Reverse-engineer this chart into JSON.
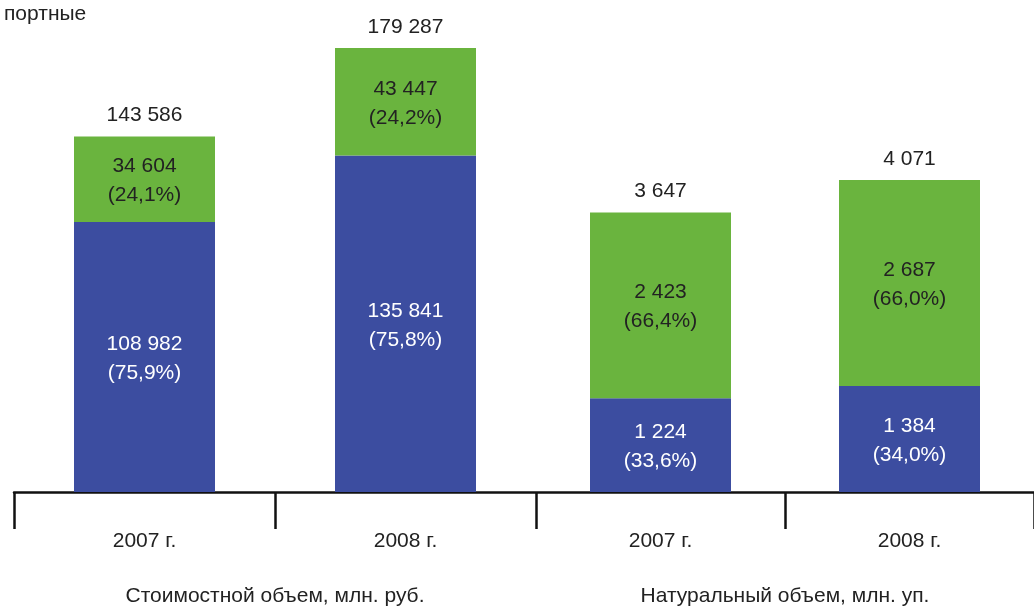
{
  "chart_data": [
    {
      "type": "bar",
      "stacked": true,
      "categories": [
        "2007 г.",
        "2008 г."
      ],
      "xlabel": "Стоимостной объем, млн. руб.",
      "annotations": [
        "портные"
      ],
      "tick_labels": "x",
      "series": [
        {
          "color": "#3c4da0",
          "values": [
            108982,
            135841
          ],
          "value_labels": [
            "108 982\n(75,9%)",
            "135 841\n(75,8%)"
          ]
        },
        {
          "color": "#6ab43e",
          "values": [
            34604,
            43447
          ],
          "value_labels": [
            "34 604\n(24,1%)",
            "43 447\n(24,2%)"
          ]
        }
      ],
      "totals": [
        "143 586",
        "179 287"
      ]
    },
    {
      "type": "bar",
      "stacked": true,
      "categories": [
        "2007 г.",
        "2008 г."
      ],
      "xlabel": "Натуральный объем, млн. уп.",
      "tick_labels": "x",
      "series": [
        {
          "color": "#3c4da0",
          "values": [
            1224,
            1384
          ],
          "value_labels": [
            "1 224\n(33,6%)",
            "1 384\n(34,0%)"
          ]
        },
        {
          "color": "#6ab43e",
          "values": [
            2423,
            2687
          ],
          "value_labels": [
            "2 423\n(66,4%)",
            "2 687\n(66,0%)"
          ]
        }
      ],
      "totals": [
        "3 647",
        "4 071"
      ]
    }
  ]
}
